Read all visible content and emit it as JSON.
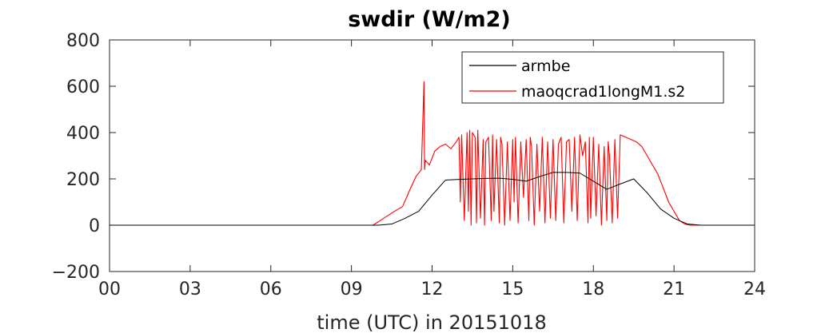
{
  "chart_data": {
    "type": "line",
    "title": "swdir  (W/m2)",
    "xlabel": "time (UTC) in 20151018",
    "ylabel": "",
    "xlim": [
      0,
      24
    ],
    "ylim": [
      -200,
      800
    ],
    "xticks": [
      0,
      3,
      6,
      9,
      12,
      15,
      18,
      21,
      24
    ],
    "xtick_labels": [
      "00",
      "03",
      "06",
      "09",
      "12",
      "15",
      "18",
      "21",
      "24"
    ],
    "yticks": [
      -200,
      0,
      200,
      400,
      600,
      800
    ],
    "ytick_labels": [
      "−200",
      "0",
      "200",
      "400",
      "600",
      "800"
    ],
    "legend_position": "top-right",
    "series": [
      {
        "name": "armbe",
        "color": "#000000",
        "x": [
          0,
          10.0,
          10.5,
          11.0,
          11.5,
          12.0,
          12.5,
          13.0,
          13.5,
          14.0,
          14.5,
          15.0,
          15.5,
          16.0,
          16.5,
          17.0,
          17.5,
          18.0,
          18.5,
          19.0,
          19.5,
          20.0,
          20.5,
          21.0,
          21.5,
          22.0,
          24
        ],
        "values": [
          0,
          0,
          5,
          30,
          60,
          130,
          195,
          198,
          200,
          202,
          203,
          198,
          190,
          210,
          228,
          228,
          225,
          190,
          155,
          178,
          200,
          140,
          70,
          30,
          5,
          0,
          0
        ]
      },
      {
        "name": "maoqcrad1longM1.s2",
        "color": "#ff0000",
        "x": [
          0,
          9.8,
          10.2,
          10.6,
          10.9,
          11.2,
          11.4,
          11.6,
          11.7,
          11.72,
          11.75,
          11.9,
          12.0,
          12.1,
          12.3,
          12.5,
          12.7,
          12.9,
          13.0,
          13.05,
          13.1,
          13.2,
          13.3,
          13.35,
          13.4,
          13.45,
          13.5,
          13.6,
          13.65,
          13.7,
          13.8,
          13.9,
          13.95,
          14.0,
          14.1,
          14.2,
          14.25,
          14.3,
          14.4,
          14.5,
          14.55,
          14.6,
          14.7,
          14.8,
          14.9,
          15.0,
          15.05,
          15.1,
          15.2,
          15.3,
          15.4,
          15.5,
          15.6,
          15.65,
          15.7,
          15.8,
          15.9,
          16.0,
          16.1,
          16.2,
          16.3,
          16.4,
          16.5,
          16.6,
          16.7,
          16.8,
          16.9,
          17.0,
          17.1,
          17.2,
          17.3,
          17.4,
          17.5,
          17.6,
          17.7,
          17.8,
          17.85,
          17.9,
          18.0,
          18.1,
          18.2,
          18.3,
          18.4,
          18.5,
          18.55,
          18.6,
          18.7,
          18.8,
          18.9,
          19.0,
          19.2,
          19.4,
          19.6,
          19.8,
          20.0,
          20.2,
          20.4,
          20.6,
          20.8,
          21.0,
          21.2,
          21.4,
          21.6,
          21.8,
          22.0,
          24
        ],
        "values": [
          0,
          0,
          30,
          60,
          80,
          160,
          210,
          240,
          620,
          240,
          280,
          260,
          290,
          320,
          340,
          350,
          330,
          360,
          380,
          100,
          390,
          20,
          400,
          60,
          410,
          0,
          400,
          380,
          10,
          410,
          30,
          370,
          0,
          360,
          380,
          20,
          390,
          60,
          370,
          10,
          380,
          350,
          0,
          360,
          20,
          370,
          100,
          380,
          10,
          360,
          120,
          370,
          20,
          380,
          340,
          0,
          350,
          60,
          380,
          10,
          360,
          30,
          370,
          20,
          350,
          380,
          10,
          360,
          370,
          60,
          380,
          20,
          390,
          300,
          360,
          10,
          380,
          30,
          380,
          40,
          350,
          0,
          340,
          20,
          360,
          300,
          10,
          370,
          30,
          390,
          380,
          370,
          360,
          340,
          300,
          260,
          220,
          160,
          100,
          60,
          20,
          5,
          0,
          0,
          0,
          0
        ]
      }
    ]
  }
}
